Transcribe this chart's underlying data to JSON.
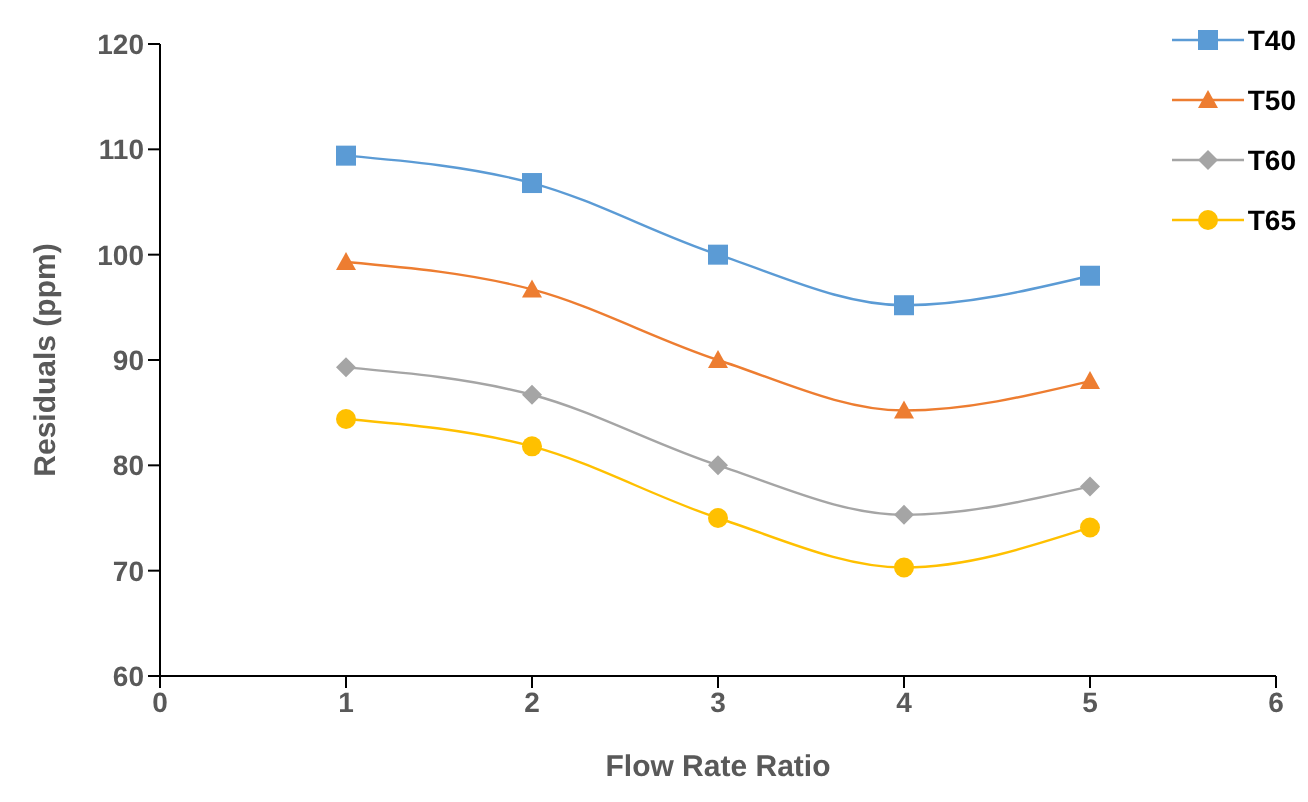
{
  "chart_data": {
    "type": "line",
    "xlabel": "Flow Rate Ratio",
    "ylabel": "Residuals (ppm)",
    "x": [
      1,
      2,
      3,
      4,
      5
    ],
    "xlim": [
      0,
      6
    ],
    "xticks": [
      0,
      1,
      2,
      3,
      4,
      5,
      6
    ],
    "ylim": [
      60,
      120
    ],
    "yticks": [
      60,
      70,
      80,
      90,
      100,
      110,
      120
    ],
    "grid": false,
    "legend": "top right",
    "line_style": "solid",
    "series": [
      {
        "name": "T40",
        "color": "#5b9bd5",
        "marker": "square",
        "values": [
          109.4,
          106.8,
          100,
          95.2,
          98
        ]
      },
      {
        "name": "T50",
        "color": "#ed7d31",
        "marker": "triangle",
        "values": [
          99.3,
          96.7,
          90,
          85.2,
          88
        ]
      },
      {
        "name": "T60",
        "color": "#a5a5a5",
        "marker": "diamond",
        "values": [
          89.3,
          86.7,
          80,
          75.3,
          78
        ]
      },
      {
        "name": "T65",
        "color": "#ffc000",
        "marker": "circle",
        "values": [
          84.4,
          81.8,
          75,
          70.3,
          74.1
        ]
      }
    ]
  }
}
